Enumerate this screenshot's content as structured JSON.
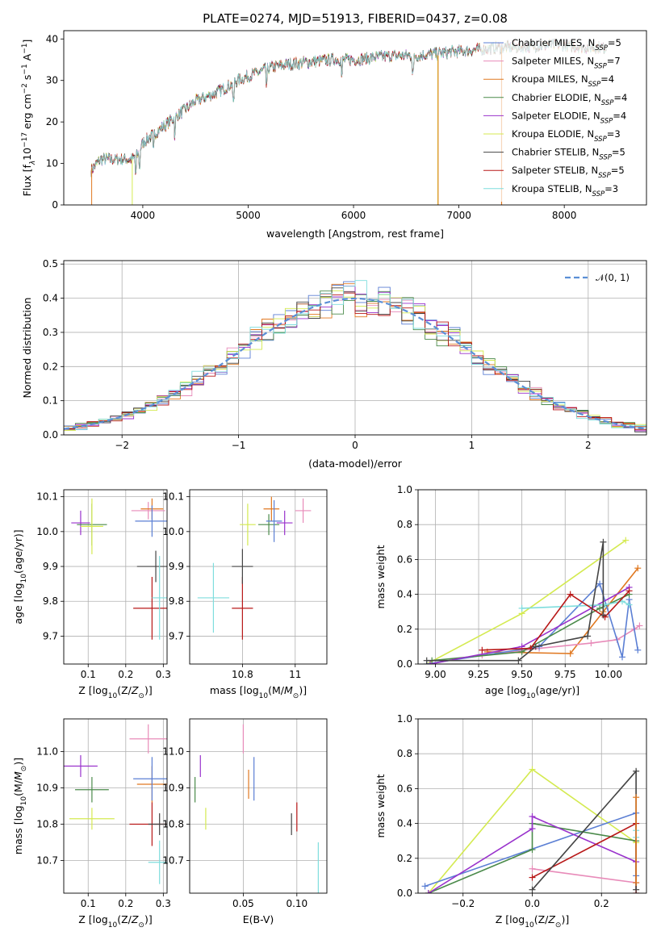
{
  "chart_data": [
    {
      "id": "spectrum",
      "type": "line",
      "title": "PLATE=0274, MJD=51913, FIBERID=0437, z=0.08",
      "xlabel": "wavelength [Angstrom, rest frame]",
      "ylabel_parts": [
        "Flux [f",
        "λ",
        "10",
        "−17",
        " erg cm",
        "−2",
        " s",
        "−1",
        " A",
        "−1",
        "]"
      ],
      "xlim": [
        3250,
        8780
      ],
      "ylim": [
        0,
        42
      ],
      "xticks": [
        4000,
        5000,
        6000,
        7000,
        8000
      ],
      "yticks": [
        0,
        10,
        20,
        30,
        40
      ],
      "continuum": {
        "x": [
          3500,
          3600,
          3800,
          3900,
          3950,
          4000,
          4100,
          4200,
          4300,
          4400,
          4500,
          4700,
          4900,
          5000,
          5200,
          5400,
          5600,
          5800,
          6000,
          6200,
          6400,
          6600,
          6800,
          7000,
          7200,
          7400,
          7600,
          7800,
          8000,
          8200,
          8400
        ],
        "y": [
          8,
          11,
          11,
          11,
          12,
          15,
          17,
          19,
          21,
          23,
          25,
          27,
          30,
          31,
          33,
          34,
          34.5,
          35,
          35,
          35.5,
          36,
          36,
          36.5,
          37,
          37.5,
          38,
          38,
          38.5,
          38.5,
          38,
          38
        ]
      },
      "series": [
        {
          "name_parts": [
            "Chabrier MILES, N",
            "SSP",
            "=5"
          ],
          "color": "#5b7fd4"
        },
        {
          "name_parts": [
            "Salpeter MILES, N",
            "SSP",
            "=7"
          ],
          "color": "#e88bb9"
        },
        {
          "name_parts": [
            "Kroupa MILES, N",
            "SSP",
            "=4"
          ],
          "color": "#e07820"
        },
        {
          "name_parts": [
            "Chabrier ELODIE, N",
            "SSP",
            "=4"
          ],
          "color": "#4a8a4a"
        },
        {
          "name_parts": [
            "Salpeter ELODIE, N",
            "SSP",
            "=4"
          ],
          "color": "#9932cc"
        },
        {
          "name_parts": [
            "Kroupa ELODIE, N",
            "SSP",
            "=3"
          ],
          "color": "#d4ea50"
        },
        {
          "name_parts": [
            "Chabrier STELIB, N",
            "SSP",
            "=5"
          ],
          "color": "#444444"
        },
        {
          "name_parts": [
            "Salpeter STELIB, N",
            "SSP",
            "=5"
          ],
          "color": "#b81818"
        },
        {
          "name_parts": [
            "Kroupa STELIB, N",
            "SSP",
            "=3"
          ],
          "color": "#7fdddd"
        }
      ]
    },
    {
      "id": "residuals",
      "type": "line",
      "xlabel": "(data-model)/error",
      "ylabel": "Normed distribution",
      "xlim": [
        -2.5,
        2.5
      ],
      "ylim": [
        0,
        0.51
      ],
      "xticks": [
        -2,
        -1,
        0,
        1,
        2
      ],
      "yticks": [
        0.0,
        0.1,
        0.2,
        0.3,
        0.4,
        0.5
      ],
      "grid": true,
      "legend": "𝒩(0, 1)",
      "gaussian": {
        "mean": 0,
        "sigma": 1,
        "color": "#5b8fd6"
      }
    },
    {
      "id": "age_vs_Z",
      "type": "scatter",
      "xlabel": "Z [log10(Z/Z⊙)]",
      "ylabel": "age  [log10(age/yr)]",
      "xlim": [
        0.035,
        0.31
      ],
      "ylim": [
        9.62,
        10.12
      ],
      "xticks": [
        0.1,
        0.2,
        0.3
      ],
      "yticks": [
        9.7,
        9.8,
        9.9,
        10.0,
        10.1
      ],
      "grid": true,
      "points": [
        {
          "x": 0.08,
          "y": 10.025,
          "xerr": 0.025,
          "yerr": 0.035,
          "color": "#9932cc"
        },
        {
          "x": 0.11,
          "y": 10.02,
          "xerr": 0.04,
          "yerr": 0.06,
          "color": "#4a8a4a"
        },
        {
          "x": 0.11,
          "y": 10.015,
          "xerr": 0.03,
          "yerr": 0.08,
          "color": "#d4ea50"
        },
        {
          "x": 0.26,
          "y": 10.06,
          "xerr": 0.045,
          "yerr": 0.025,
          "color": "#e88bb9"
        },
        {
          "x": 0.27,
          "y": 10.065,
          "xerr": 0.03,
          "yerr": 0.03,
          "color": "#e07820"
        },
        {
          "x": 0.27,
          "y": 10.03,
          "xerr": 0.045,
          "yerr": 0.045,
          "color": "#5b7fd4"
        },
        {
          "x": 0.28,
          "y": 9.9,
          "xerr": 0.05,
          "yerr": 0.045,
          "color": "#444444"
        },
        {
          "x": 0.27,
          "y": 9.78,
          "xerr": 0.05,
          "yerr": 0.09,
          "color": "#b81818"
        },
        {
          "x": 0.29,
          "y": 9.81,
          "xerr": 0.02,
          "yerr": 0.12,
          "color": "#7fdddd"
        }
      ]
    },
    {
      "id": "age_vs_mass",
      "type": "scatter",
      "xlabel": "mass [log10(M/M⊙)]",
      "ylabel": "",
      "xlim": [
        10.6,
        11.12
      ],
      "ylim": [
        9.62,
        10.12
      ],
      "xticks": [
        10.8,
        11.0
      ],
      "yticks": [
        9.7,
        9.8,
        9.9,
        10.0,
        10.1
      ],
      "grid": true,
      "points": [
        {
          "x": 10.69,
          "y": 9.81,
          "xerr": 0.06,
          "yerr": 0.1,
          "color": "#7fdddd"
        },
        {
          "x": 10.8,
          "y": 9.78,
          "xerr": 0.04,
          "yerr": 0.09,
          "color": "#b81818"
        },
        {
          "x": 10.8,
          "y": 9.9,
          "xerr": 0.04,
          "yerr": 0.05,
          "color": "#444444"
        },
        {
          "x": 10.82,
          "y": 10.02,
          "xerr": 0.03,
          "yerr": 0.06,
          "color": "#d4ea50"
        },
        {
          "x": 10.9,
          "y": 10.02,
          "xerr": 0.04,
          "yerr": 0.03,
          "color": "#4a8a4a"
        },
        {
          "x": 10.91,
          "y": 10.065,
          "xerr": 0.03,
          "yerr": 0.035,
          "color": "#e07820"
        },
        {
          "x": 10.92,
          "y": 10.03,
          "xerr": 0.03,
          "yerr": 0.06,
          "color": "#5b7fd4"
        },
        {
          "x": 10.96,
          "y": 10.025,
          "xerr": 0.03,
          "yerr": 0.035,
          "color": "#9932cc"
        },
        {
          "x": 11.03,
          "y": 10.06,
          "xerr": 0.03,
          "yerr": 0.035,
          "color": "#e88bb9"
        }
      ]
    },
    {
      "id": "massweight_vs_age",
      "type": "line",
      "xlabel": "age  [log10(age/yr)]",
      "ylabel": "mass weight",
      "xlim": [
        8.9,
        10.22
      ],
      "ylim": [
        0,
        1.0
      ],
      "xticks": [
        9.0,
        9.25,
        9.5,
        9.75,
        10.0
      ],
      "xticklabels": [
        "9.00",
        "9.25",
        "9.50",
        "9.75",
        "10.00"
      ],
      "yticks": [
        0.0,
        0.2,
        0.4,
        0.6,
        0.8,
        1.0
      ],
      "grid": true,
      "series": [
        {
          "color": "#d4ea50",
          "x": [
            8.95,
            9.5,
            10.1
          ],
          "y": [
            0.0,
            0.29,
            0.71
          ]
        },
        {
          "color": "#e07820",
          "x": [
            9.3,
            9.78,
            9.97,
            10.17
          ],
          "y": [
            0.07,
            0.06,
            0.3,
            0.55
          ]
        },
        {
          "color": "#e88bb9",
          "x": [
            9.27,
            9.6,
            9.9,
            10.05,
            10.15,
            10.18
          ],
          "y": [
            0.05,
            0.09,
            0.12,
            0.14,
            0.2,
            0.22
          ]
        },
        {
          "color": "#5b7fd4",
          "x": [
            8.95,
            9.6,
            9.95,
            10.08,
            10.12,
            10.17
          ],
          "y": [
            0.0,
            0.1,
            0.46,
            0.04,
            0.37,
            0.08
          ]
        },
        {
          "color": "#4a8a4a",
          "x": [
            8.98,
            9.5,
            9.95,
            10.12
          ],
          "y": [
            0.02,
            0.07,
            0.32,
            0.4
          ]
        },
        {
          "color": "#9932cc",
          "x": [
            8.97,
            9.5,
            10.12
          ],
          "y": [
            0.0,
            0.1,
            0.44
          ]
        },
        {
          "color": "#7fdddd",
          "x": [
            9.5,
            9.98,
            10.08,
            10.12
          ],
          "y": [
            0.32,
            0.34,
            0.36,
            0.34
          ]
        },
        {
          "color": "#b81818",
          "x": [
            9.27,
            9.55,
            9.78,
            9.98,
            10.12
          ],
          "y": [
            0.08,
            0.09,
            0.4,
            0.27,
            0.42
          ]
        },
        {
          "color": "#444444",
          "x": [
            8.95,
            9.48,
            9.58,
            9.88,
            9.97,
            9.97
          ],
          "y": [
            0.02,
            0.02,
            0.1,
            0.16,
            0.7,
            0.28
          ]
        }
      ]
    },
    {
      "id": "mass_vs_Z",
      "type": "scatter",
      "xlabel": "Z [log10(Z/Z⊙)]",
      "ylabel": "mass [log10(M/M⊙)]",
      "xlim": [
        0.035,
        0.31
      ],
      "ylim": [
        10.61,
        11.09
      ],
      "xticks": [
        0.1,
        0.2,
        0.3
      ],
      "yticks": [
        10.7,
        10.8,
        10.9,
        11.0
      ],
      "grid": true,
      "points": [
        {
          "x": 0.08,
          "y": 10.96,
          "xerr": 0.045,
          "yerr": 0.03,
          "color": "#9932cc"
        },
        {
          "x": 0.11,
          "y": 10.895,
          "xerr": 0.045,
          "yerr": 0.035,
          "color": "#4a8a4a"
        },
        {
          "x": 0.11,
          "y": 10.815,
          "xerr": 0.06,
          "yerr": 0.03,
          "color": "#d4ea50"
        },
        {
          "x": 0.26,
          "y": 11.035,
          "xerr": 0.05,
          "yerr": 0.04,
          "color": "#e88bb9"
        },
        {
          "x": 0.27,
          "y": 10.91,
          "xerr": 0.04,
          "yerr": 0.05,
          "color": "#e07820"
        },
        {
          "x": 0.27,
          "y": 10.925,
          "xerr": 0.05,
          "yerr": 0.06,
          "color": "#5b7fd4"
        },
        {
          "x": 0.27,
          "y": 10.8,
          "xerr": 0.06,
          "yerr": 0.06,
          "color": "#b81818"
        },
        {
          "x": 0.29,
          "y": 10.8,
          "xerr": 0.03,
          "yerr": 0.03,
          "color": "#444444"
        },
        {
          "x": 0.29,
          "y": 10.695,
          "xerr": 0.03,
          "yerr": 0.06,
          "color": "#7fdddd"
        }
      ]
    },
    {
      "id": "mass_vs_ebv",
      "type": "scatter",
      "xlabel": "E(B-V)",
      "ylabel": "",
      "xlim": [
        0.0,
        0.128
      ],
      "ylim": [
        10.61,
        11.09
      ],
      "xticks": [
        0.05,
        0.1
      ],
      "xticklabels": [
        "0.05",
        "0.10"
      ],
      "yticks": [
        10.7,
        10.8,
        10.9,
        11.0
      ],
      "grid": true,
      "points": [
        {
          "x": 0.005,
          "y": 10.895,
          "xerr": 0.0,
          "yerr": 0.035,
          "color": "#4a8a4a"
        },
        {
          "x": 0.01,
          "y": 10.96,
          "xerr": 0.0,
          "yerr": 0.03,
          "color": "#9932cc"
        },
        {
          "x": 0.015,
          "y": 10.815,
          "xerr": 0.0,
          "yerr": 0.03,
          "color": "#d4ea50"
        },
        {
          "x": 0.05,
          "y": 11.035,
          "xerr": 0.0,
          "yerr": 0.04,
          "color": "#e88bb9"
        },
        {
          "x": 0.055,
          "y": 10.91,
          "xerr": 0.0,
          "yerr": 0.04,
          "color": "#e07820"
        },
        {
          "x": 0.06,
          "y": 10.925,
          "xerr": 0.0,
          "yerr": 0.06,
          "color": "#5b7fd4"
        },
        {
          "x": 0.095,
          "y": 10.8,
          "xerr": 0.0,
          "yerr": 0.03,
          "color": "#444444"
        },
        {
          "x": 0.1,
          "y": 10.82,
          "xerr": 0.0,
          "yerr": 0.04,
          "color": "#b81818"
        },
        {
          "x": 0.12,
          "y": 10.68,
          "xerr": 0.0,
          "yerr": 0.07,
          "color": "#7fdddd"
        }
      ]
    },
    {
      "id": "massweight_vs_Z",
      "type": "line",
      "xlabel": "Z [log10(Z/Z⊙)]",
      "ylabel": "mass weight",
      "xlim": [
        -0.33,
        0.33
      ],
      "ylim": [
        0,
        1.0
      ],
      "xticks": [
        -0.2,
        0.0,
        0.2
      ],
      "xticklabels": [
        "−0.2",
        "0.0",
        "0.2"
      ],
      "yticks": [
        0.0,
        0.2,
        0.4,
        0.6,
        0.8,
        1.0
      ],
      "grid": true,
      "series": [
        {
          "color": "#d4ea50",
          "x": [
            -0.3,
            0.0,
            0.3
          ],
          "y": [
            0.0,
            0.71,
            0.29
          ]
        },
        {
          "color": "#5b7fd4",
          "x": [
            -0.31,
            0.3,
            0.3
          ],
          "y": [
            0.04,
            0.46,
            0.1
          ]
        },
        {
          "color": "#4a8a4a",
          "x": [
            -0.3,
            0.0,
            0.0,
            0.3
          ],
          "y": [
            0.0,
            0.25,
            0.4,
            0.3
          ]
        },
        {
          "color": "#9932cc",
          "x": [
            -0.3,
            0.0,
            0.0,
            0.3
          ],
          "y": [
            0.0,
            0.37,
            0.44,
            0.18
          ]
        },
        {
          "color": "#e88bb9",
          "x": [
            0.0,
            0.3
          ],
          "y": [
            0.14,
            0.06
          ]
        },
        {
          "color": "#b81818",
          "x": [
            0.0,
            0.3,
            0.3
          ],
          "y": [
            0.09,
            0.4,
            0.0
          ]
        },
        {
          "color": "#444444",
          "x": [
            0.0,
            0.3,
            0.3
          ],
          "y": [
            0.02,
            0.7,
            0.02
          ]
        },
        {
          "color": "#7fdddd",
          "x": [
            0.3,
            0.3
          ],
          "y": [
            0.32,
            0.36
          ]
        },
        {
          "color": "#e07820",
          "x": [
            0.3,
            0.3
          ],
          "y": [
            0.06,
            0.55
          ]
        }
      ]
    }
  ]
}
